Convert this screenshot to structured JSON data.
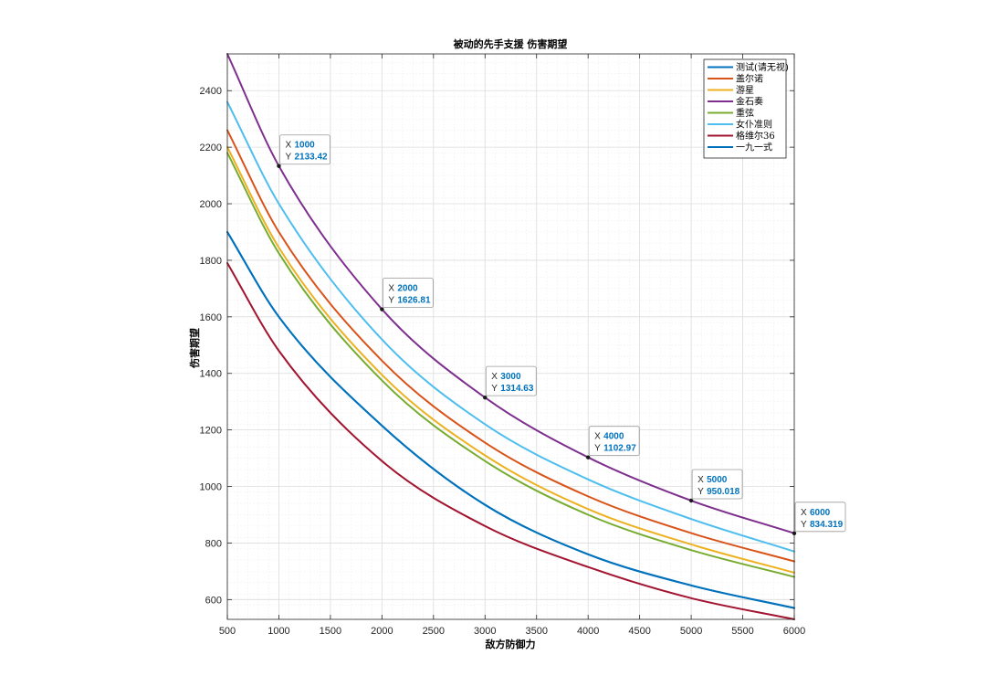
{
  "chart_data": {
    "type": "line",
    "title": "被动的先手支援 伤害期望",
    "xlabel": "敌方防御力",
    "ylabel": "伤害期望",
    "xlim": [
      500,
      6000
    ],
    "ylim": [
      530,
      2530
    ],
    "xticks": [
      500,
      1000,
      1500,
      2000,
      2500,
      3000,
      3500,
      4000,
      4500,
      5000,
      5500,
      6000
    ],
    "yticks": [
      600,
      800,
      1000,
      1200,
      1400,
      1600,
      1800,
      2000,
      2200,
      2400
    ],
    "grid": true,
    "minor_grid": true,
    "legend_position": "top-right",
    "x": [
      500,
      1000,
      2000,
      3000,
      4000,
      5000,
      6000
    ],
    "series": [
      {
        "name": "测试(请无视)",
        "color": "#0072BD",
        "values": [
          1900,
          1600,
          1215,
          935,
          760,
          650,
          570
        ]
      },
      {
        "name": "盖尔诺",
        "color": "#D95319",
        "values": [
          2260,
          1900,
          1445,
          1155,
          965,
          835,
          735
        ]
      },
      {
        "name": "游星",
        "color": "#EDB120",
        "values": [
          2200,
          1845,
          1395,
          1110,
          920,
          795,
          695
        ]
      },
      {
        "name": "金石奏",
        "color": "#7E2F8E",
        "values": [
          2530,
          2133.42,
          1626.81,
          1314.63,
          1102.97,
          950.018,
          834.319
        ]
      },
      {
        "name": "重弦",
        "color": "#77AC30",
        "values": [
          2180,
          1825,
          1375,
          1090,
          900,
          775,
          680
        ]
      },
      {
        "name": "女仆准则",
        "color": "#4DBEEE",
        "values": [
          2360,
          2000,
          1520,
          1220,
          1025,
          885,
          770
        ]
      },
      {
        "name": "格维尔36",
        "color": "#A2142F",
        "values": [
          1790,
          1480,
          1090,
          860,
          715,
          605,
          530
        ]
      },
      {
        "name": "一九一式",
        "color": "#0072BD",
        "values": [
          1900,
          1600,
          1215,
          935,
          760,
          650,
          570
        ]
      }
    ],
    "datatips": [
      {
        "x_label": "X",
        "y_label": "Y",
        "x": "1000",
        "y": "2133.42",
        "xv": 1000,
        "yv": 2133.42
      },
      {
        "x_label": "X",
        "y_label": "Y",
        "x": "2000",
        "y": "1626.81",
        "xv": 2000,
        "yv": 1626.81
      },
      {
        "x_label": "X",
        "y_label": "Y",
        "x": "3000",
        "y": "1314.63",
        "xv": 3000,
        "yv": 1314.63
      },
      {
        "x_label": "X",
        "y_label": "Y",
        "x": "4000",
        "y": "1102.97",
        "xv": 4000,
        "yv": 1102.97
      },
      {
        "x_label": "X",
        "y_label": "Y",
        "x": "5000",
        "y": "950.018",
        "xv": 5000,
        "yv": 950.018
      },
      {
        "x_label": "X",
        "y_label": "Y",
        "x": "6000",
        "y": "834.319",
        "xv": 6000,
        "yv": 834.319
      }
    ],
    "colors": {
      "axis": "#262626",
      "grid": "#dcdcdc",
      "minor_grid": "#ededed",
      "datatip_value": "#0072BD",
      "datatip_marker": "#1a1a1a"
    }
  }
}
